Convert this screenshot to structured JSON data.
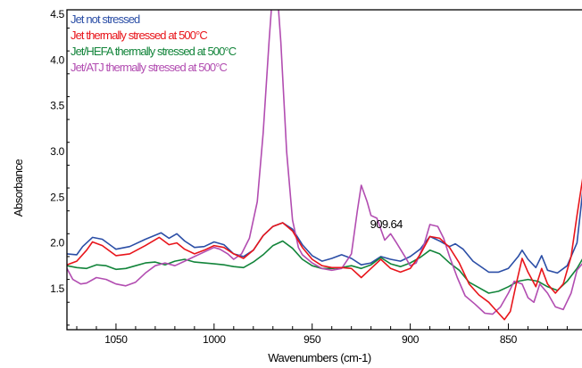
{
  "chart_data": {
    "type": "line",
    "xlabel": "Wavenumbers (cm-1)",
    "ylabel": "Absorbance",
    "xlim": [
      1075,
      812
    ],
    "ylim": [
      1.05,
      4.55
    ],
    "x_reversed": true,
    "grid": false,
    "legend_position": "top-left",
    "x_ticks": [
      1050,
      1000,
      950,
      900,
      850
    ],
    "y_ticks": [
      1.5,
      2.0,
      2.5,
      3.0,
      3.5,
      4.0,
      4.5
    ],
    "x_tick_labels": [
      "1050",
      "1000",
      "950",
      "900",
      "850"
    ],
    "y_tick_labels": [
      "1.5",
      "2.0",
      "2.5",
      "3.0",
      "3.5",
      "4.0",
      "4.5"
    ],
    "annotations": [
      {
        "text": "909.64",
        "x": 910,
        "y": 2.2
      }
    ],
    "series": [
      {
        "name": "Jet not stressed",
        "color": "#2b4ea6",
        "points": [
          [
            1075,
            1.88
          ],
          [
            1070,
            1.87
          ],
          [
            1067,
            1.96
          ],
          [
            1062,
            2.06
          ],
          [
            1057,
            2.04
          ],
          [
            1050,
            1.93
          ],
          [
            1043,
            1.96
          ],
          [
            1035,
            2.04
          ],
          [
            1027,
            2.11
          ],
          [
            1023,
            2.05
          ],
          [
            1019,
            2.1
          ],
          [
            1015,
            2.02
          ],
          [
            1010,
            1.95
          ],
          [
            1005,
            1.96
          ],
          [
            1000,
            2.01
          ],
          [
            995,
            1.98
          ],
          [
            990,
            1.88
          ],
          [
            985,
            1.85
          ],
          [
            980,
            1.92
          ],
          [
            975,
            2.08
          ],
          [
            970,
            2.18
          ],
          [
            965,
            2.22
          ],
          [
            960,
            2.15
          ],
          [
            955,
            1.98
          ],
          [
            950,
            1.86
          ],
          [
            945,
            1.8
          ],
          [
            940,
            1.83
          ],
          [
            935,
            1.87
          ],
          [
            930,
            1.83
          ],
          [
            925,
            1.76
          ],
          [
            920,
            1.78
          ],
          [
            915,
            1.85
          ],
          [
            910,
            1.82
          ],
          [
            905,
            1.8
          ],
          [
            900,
            1.85
          ],
          [
            895,
            1.93
          ],
          [
            890,
            2.07
          ],
          [
            885,
            2.02
          ],
          [
            880,
            1.96
          ],
          [
            877,
            1.99
          ],
          [
            873,
            1.93
          ],
          [
            868,
            1.8
          ],
          [
            860,
            1.68
          ],
          [
            855,
            1.68
          ],
          [
            850,
            1.72
          ],
          [
            845,
            1.85
          ],
          [
            843,
            1.92
          ],
          [
            840,
            1.82
          ],
          [
            836,
            1.73
          ],
          [
            833,
            1.86
          ],
          [
            830,
            1.7
          ],
          [
            825,
            1.67
          ],
          [
            820,
            1.75
          ],
          [
            815,
            2.0
          ],
          [
            812,
            2.58
          ]
        ]
      },
      {
        "name": "Jet thermally stressed at 500°C",
        "color": "#e8151b",
        "points": [
          [
            1075,
            1.76
          ],
          [
            1070,
            1.8
          ],
          [
            1065,
            1.92
          ],
          [
            1062,
            2.01
          ],
          [
            1057,
            1.97
          ],
          [
            1050,
            1.86
          ],
          [
            1043,
            1.88
          ],
          [
            1035,
            1.97
          ],
          [
            1028,
            2.06
          ],
          [
            1023,
            1.98
          ],
          [
            1019,
            2.0
          ],
          [
            1015,
            1.93
          ],
          [
            1010,
            1.88
          ],
          [
            1005,
            1.92
          ],
          [
            1000,
            1.97
          ],
          [
            995,
            1.95
          ],
          [
            990,
            1.88
          ],
          [
            985,
            1.83
          ],
          [
            980,
            1.92
          ],
          [
            975,
            2.08
          ],
          [
            970,
            2.18
          ],
          [
            965,
            2.22
          ],
          [
            960,
            2.13
          ],
          [
            955,
            1.95
          ],
          [
            950,
            1.82
          ],
          [
            945,
            1.75
          ],
          [
            940,
            1.73
          ],
          [
            935,
            1.73
          ],
          [
            930,
            1.72
          ],
          [
            925,
            1.62
          ],
          [
            920,
            1.72
          ],
          [
            915,
            1.82
          ],
          [
            910,
            1.72
          ],
          [
            905,
            1.68
          ],
          [
            900,
            1.72
          ],
          [
            895,
            1.87
          ],
          [
            890,
            2.07
          ],
          [
            885,
            2.05
          ],
          [
            880,
            1.95
          ],
          [
            875,
            1.78
          ],
          [
            870,
            1.55
          ],
          [
            865,
            1.43
          ],
          [
            860,
            1.35
          ],
          [
            855,
            1.23
          ],
          [
            852,
            1.16
          ],
          [
            849,
            1.25
          ],
          [
            846,
            1.55
          ],
          [
            843,
            1.83
          ],
          [
            840,
            1.68
          ],
          [
            836,
            1.52
          ],
          [
            833,
            1.72
          ],
          [
            830,
            1.55
          ],
          [
            826,
            1.45
          ],
          [
            822,
            1.55
          ],
          [
            818,
            1.85
          ],
          [
            815,
            2.3
          ],
          [
            812,
            2.72
          ]
        ]
      },
      {
        "name": "Jet/HEFA thermally stressed at 500°C",
        "color": "#12843a",
        "points": [
          [
            1075,
            1.75
          ],
          [
            1070,
            1.73
          ],
          [
            1065,
            1.72
          ],
          [
            1060,
            1.76
          ],
          [
            1055,
            1.75
          ],
          [
            1050,
            1.71
          ],
          [
            1045,
            1.72
          ],
          [
            1040,
            1.75
          ],
          [
            1035,
            1.78
          ],
          [
            1030,
            1.79
          ],
          [
            1025,
            1.76
          ],
          [
            1020,
            1.8
          ],
          [
            1015,
            1.82
          ],
          [
            1010,
            1.79
          ],
          [
            1005,
            1.78
          ],
          [
            1000,
            1.77
          ],
          [
            995,
            1.76
          ],
          [
            990,
            1.74
          ],
          [
            985,
            1.73
          ],
          [
            980,
            1.79
          ],
          [
            975,
            1.87
          ],
          [
            970,
            1.97
          ],
          [
            965,
            2.02
          ],
          [
            960,
            1.94
          ],
          [
            955,
            1.82
          ],
          [
            950,
            1.75
          ],
          [
            945,
            1.72
          ],
          [
            940,
            1.72
          ],
          [
            935,
            1.73
          ],
          [
            930,
            1.75
          ],
          [
            925,
            1.72
          ],
          [
            920,
            1.76
          ],
          [
            915,
            1.84
          ],
          [
            910,
            1.77
          ],
          [
            905,
            1.74
          ],
          [
            900,
            1.78
          ],
          [
            895,
            1.84
          ],
          [
            890,
            1.92
          ],
          [
            885,
            1.88
          ],
          [
            880,
            1.78
          ],
          [
            875,
            1.7
          ],
          [
            870,
            1.57
          ],
          [
            865,
            1.51
          ],
          [
            860,
            1.45
          ],
          [
            855,
            1.47
          ],
          [
            850,
            1.52
          ],
          [
            845,
            1.58
          ],
          [
            840,
            1.6
          ],
          [
            835,
            1.58
          ],
          [
            830,
            1.52
          ],
          [
            825,
            1.48
          ],
          [
            820,
            1.58
          ],
          [
            815,
            1.72
          ],
          [
            812,
            1.83
          ]
        ]
      },
      {
        "name": "Jet/ATJ thermally stressed at 500°C",
        "color": "#b24db1",
        "points": [
          [
            1075,
            1.72
          ],
          [
            1072,
            1.6
          ],
          [
            1068,
            1.55
          ],
          [
            1065,
            1.56
          ],
          [
            1060,
            1.62
          ],
          [
            1055,
            1.6
          ],
          [
            1050,
            1.55
          ],
          [
            1045,
            1.53
          ],
          [
            1040,
            1.57
          ],
          [
            1035,
            1.67
          ],
          [
            1030,
            1.75
          ],
          [
            1025,
            1.78
          ],
          [
            1020,
            1.75
          ],
          [
            1015,
            1.8
          ],
          [
            1010,
            1.85
          ],
          [
            1005,
            1.9
          ],
          [
            1000,
            1.95
          ],
          [
            997,
            1.93
          ],
          [
            993,
            1.88
          ],
          [
            990,
            1.82
          ],
          [
            986,
            1.88
          ],
          [
            982,
            2.05
          ],
          [
            978,
            2.45
          ],
          [
            975,
            3.2
          ],
          [
            972,
            4.2
          ],
          [
            970,
            4.8
          ],
          [
            968,
            4.8
          ],
          [
            966,
            4.2
          ],
          [
            963,
            3.0
          ],
          [
            960,
            2.25
          ],
          [
            957,
            1.95
          ],
          [
            955,
            1.87
          ],
          [
            950,
            1.78
          ],
          [
            945,
            1.72
          ],
          [
            940,
            1.7
          ],
          [
            935,
            1.72
          ],
          [
            930,
            1.88
          ],
          [
            927,
            2.35
          ],
          [
            925,
            2.63
          ],
          [
            922,
            2.45
          ],
          [
            920,
            2.3
          ],
          [
            917,
            2.27
          ],
          [
            913,
            2.03
          ],
          [
            910,
            2.1
          ],
          [
            907,
            2.0
          ],
          [
            903,
            1.86
          ],
          [
            900,
            1.75
          ],
          [
            897,
            1.78
          ],
          [
            893,
            1.98
          ],
          [
            890,
            2.2
          ],
          [
            886,
            2.18
          ],
          [
            883,
            2.05
          ],
          [
            880,
            1.85
          ],
          [
            876,
            1.62
          ],
          [
            872,
            1.42
          ],
          [
            867,
            1.33
          ],
          [
            862,
            1.23
          ],
          [
            858,
            1.22
          ],
          [
            854,
            1.3
          ],
          [
            850,
            1.45
          ],
          [
            847,
            1.58
          ],
          [
            843,
            1.55
          ],
          [
            840,
            1.4
          ],
          [
            837,
            1.35
          ],
          [
            834,
            1.55
          ],
          [
            830,
            1.45
          ],
          [
            826,
            1.3
          ],
          [
            822,
            1.27
          ],
          [
            818,
            1.45
          ],
          [
            815,
            1.7
          ],
          [
            812,
            1.78
          ]
        ]
      }
    ]
  }
}
